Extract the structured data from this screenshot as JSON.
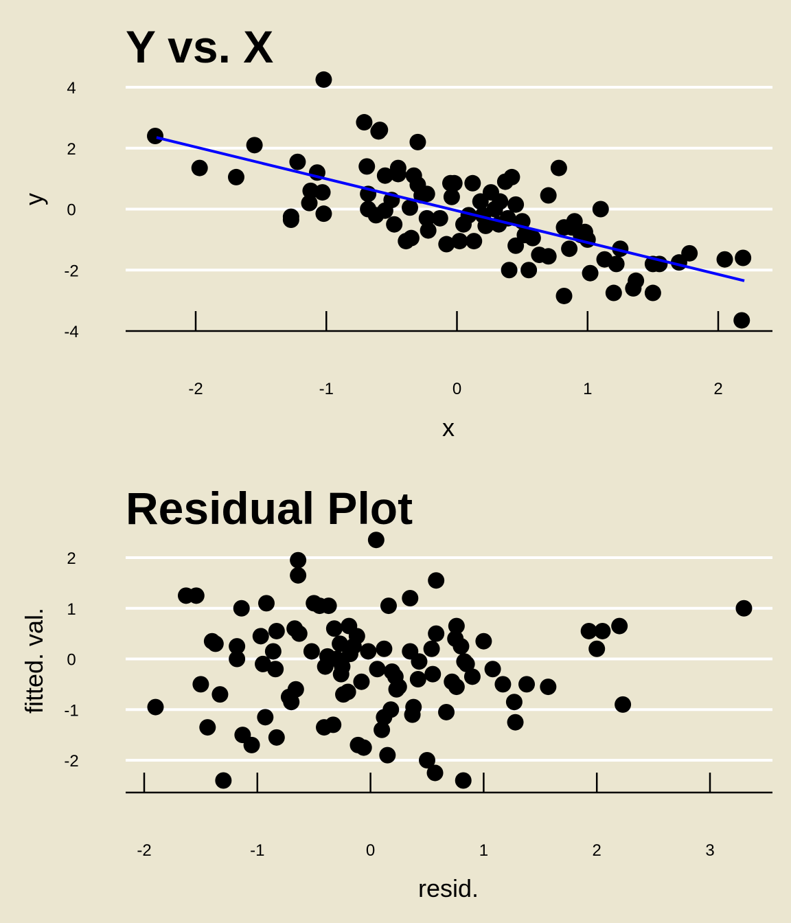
{
  "chart_data": [
    {
      "type": "scatter",
      "title": "Y vs. X",
      "xlabel": "x",
      "ylabel": "y",
      "xlim": [
        -2.6,
        2.35
      ],
      "ylim": [
        -4,
        4.3
      ],
      "xticks": [
        "-2",
        "-1",
        "0",
        "1",
        "2"
      ],
      "yticks": [
        "-4",
        "-2",
        "0",
        "2",
        "4"
      ],
      "grid": "horizontal",
      "line_color": "#0000ff",
      "fit_line": {
        "x": [
          -2.3,
          2.2
        ],
        "y": [
          2.35,
          -2.35
        ]
      },
      "points": [
        {
          "x": -2.31,
          "y": 2.4
        },
        {
          "x": -1.97,
          "y": 1.35
        },
        {
          "x": -1.69,
          "y": 1.05
        },
        {
          "x": -1.55,
          "y": 2.1
        },
        {
          "x": -1.27,
          "y": -0.25
        },
        {
          "x": -1.27,
          "y": -0.35
        },
        {
          "x": -1.22,
          "y": 1.55
        },
        {
          "x": -1.13,
          "y": 0.2
        },
        {
          "x": -1.12,
          "y": 0.6
        },
        {
          "x": -1.07,
          "y": 1.2
        },
        {
          "x": -1.03,
          "y": 0.55
        },
        {
          "x": -1.02,
          "y": -0.15
        },
        {
          "x": -1.02,
          "y": 4.25
        },
        {
          "x": -0.71,
          "y": 2.85
        },
        {
          "x": -0.69,
          "y": 1.4
        },
        {
          "x": -0.68,
          "y": 0.5
        },
        {
          "x": -0.68,
          "y": 0.0
        },
        {
          "x": -0.62,
          "y": -0.2
        },
        {
          "x": -0.6,
          "y": 2.55
        },
        {
          "x": -0.59,
          "y": 2.6
        },
        {
          "x": -0.55,
          "y": 1.1
        },
        {
          "x": -0.55,
          "y": -0.05
        },
        {
          "x": -0.5,
          "y": 0.3
        },
        {
          "x": -0.48,
          "y": -0.5
        },
        {
          "x": -0.45,
          "y": 1.15
        },
        {
          "x": -0.45,
          "y": 1.35
        },
        {
          "x": -0.39,
          "y": -1.05
        },
        {
          "x": -0.36,
          "y": 0.05
        },
        {
          "x": -0.35,
          "y": -0.95
        },
        {
          "x": -0.33,
          "y": 1.1
        },
        {
          "x": -0.3,
          "y": 2.2
        },
        {
          "x": -0.3,
          "y": 0.8
        },
        {
          "x": -0.27,
          "y": 0.45
        },
        {
          "x": -0.23,
          "y": 0.5
        },
        {
          "x": -0.23,
          "y": -0.3
        },
        {
          "x": -0.22,
          "y": -0.7
        },
        {
          "x": -0.13,
          "y": -0.3
        },
        {
          "x": -0.08,
          "y": -1.15
        },
        {
          "x": -0.05,
          "y": 0.85
        },
        {
          "x": -0.04,
          "y": 0.4
        },
        {
          "x": -0.02,
          "y": 0.85
        },
        {
          "x": 0.02,
          "y": -1.05
        },
        {
          "x": 0.05,
          "y": -0.5
        },
        {
          "x": 0.09,
          "y": -0.2
        },
        {
          "x": 0.12,
          "y": 0.85
        },
        {
          "x": 0.13,
          "y": -1.05
        },
        {
          "x": 0.18,
          "y": 0.25
        },
        {
          "x": 0.2,
          "y": -0.2
        },
        {
          "x": 0.22,
          "y": -0.55
        },
        {
          "x": 0.26,
          "y": 0.55
        },
        {
          "x": 0.29,
          "y": 0.0
        },
        {
          "x": 0.32,
          "y": -0.5
        },
        {
          "x": 0.33,
          "y": 0.25
        },
        {
          "x": 0.37,
          "y": 0.9
        },
        {
          "x": 0.39,
          "y": -0.3
        },
        {
          "x": 0.4,
          "y": -2.0
        },
        {
          "x": 0.42,
          "y": 1.05
        },
        {
          "x": 0.45,
          "y": -1.2
        },
        {
          "x": 0.45,
          "y": 0.15
        },
        {
          "x": 0.5,
          "y": -0.4
        },
        {
          "x": 0.52,
          "y": -0.85
        },
        {
          "x": 0.55,
          "y": -2.0
        },
        {
          "x": 0.58,
          "y": -0.95
        },
        {
          "x": 0.63,
          "y": -1.5
        },
        {
          "x": 0.7,
          "y": 0.45
        },
        {
          "x": 0.7,
          "y": -1.55
        },
        {
          "x": 0.78,
          "y": 1.35
        },
        {
          "x": 0.82,
          "y": -2.85
        },
        {
          "x": 0.82,
          "y": -0.6
        },
        {
          "x": 0.86,
          "y": -1.3
        },
        {
          "x": 0.88,
          "y": -0.6
        },
        {
          "x": 0.9,
          "y": -0.4
        },
        {
          "x": 0.95,
          "y": -0.85
        },
        {
          "x": 0.98,
          "y": -0.75
        },
        {
          "x": 1.0,
          "y": -1.0
        },
        {
          "x": 1.02,
          "y": -2.1
        },
        {
          "x": 1.1,
          "y": 0.0
        },
        {
          "x": 1.13,
          "y": -1.65
        },
        {
          "x": 1.2,
          "y": -2.75
        },
        {
          "x": 1.22,
          "y": -1.8
        },
        {
          "x": 1.25,
          "y": -1.3
        },
        {
          "x": 1.35,
          "y": -2.6
        },
        {
          "x": 1.37,
          "y": -2.35
        },
        {
          "x": 1.5,
          "y": -2.75
        },
        {
          "x": 1.5,
          "y": -1.8
        },
        {
          "x": 1.55,
          "y": -1.8
        },
        {
          "x": 1.7,
          "y": -1.75
        },
        {
          "x": 1.78,
          "y": -1.45
        },
        {
          "x": 2.05,
          "y": -1.65
        },
        {
          "x": 2.18,
          "y": -3.65
        },
        {
          "x": 2.19,
          "y": -1.6
        }
      ]
    },
    {
      "type": "scatter",
      "title": "Residual Plot",
      "xlabel": "resid.",
      "ylabel": "fitted. val.",
      "xlim": [
        -2.15,
        3.55
      ],
      "ylim": [
        -2.6,
        2.3
      ],
      "xticks": [
        "-2",
        "-1",
        "0",
        "1",
        "2",
        "3"
      ],
      "yticks": [
        "-2",
        "-1",
        "0",
        "1",
        "2"
      ],
      "grid": "horizontal",
      "points": [
        {
          "x": -1.9,
          "y": -0.95
        },
        {
          "x": -1.63,
          "y": 1.25
        },
        {
          "x": -1.54,
          "y": 1.25
        },
        {
          "x": -1.5,
          "y": -0.5
        },
        {
          "x": -1.44,
          "y": -1.35
        },
        {
          "x": -1.4,
          "y": 0.35
        },
        {
          "x": -1.37,
          "y": 0.3
        },
        {
          "x": -1.33,
          "y": -0.7
        },
        {
          "x": -1.3,
          "y": -2.4
        },
        {
          "x": -1.18,
          "y": 0.25
        },
        {
          "x": -1.18,
          "y": 0.0
        },
        {
          "x": -1.14,
          "y": 1.0
        },
        {
          "x": -1.13,
          "y": -1.5
        },
        {
          "x": -1.05,
          "y": -1.7
        },
        {
          "x": -0.97,
          "y": 0.45
        },
        {
          "x": -0.95,
          "y": -0.1
        },
        {
          "x": -0.93,
          "y": -1.15
        },
        {
          "x": -0.92,
          "y": 1.1
        },
        {
          "x": -0.86,
          "y": 0.15
        },
        {
          "x": -0.84,
          "y": -0.2
        },
        {
          "x": -0.83,
          "y": 0.55
        },
        {
          "x": -0.83,
          "y": -1.55
        },
        {
          "x": -0.72,
          "y": -0.75
        },
        {
          "x": -0.7,
          "y": -0.85
        },
        {
          "x": -0.67,
          "y": 0.6
        },
        {
          "x": -0.66,
          "y": -0.6
        },
        {
          "x": -0.64,
          "y": 1.95
        },
        {
          "x": -0.64,
          "y": 1.65
        },
        {
          "x": -0.63,
          "y": 0.5
        },
        {
          "x": -0.52,
          "y": 0.15
        },
        {
          "x": -0.5,
          "y": 1.1
        },
        {
          "x": -0.45,
          "y": 1.05
        },
        {
          "x": -0.41,
          "y": -1.35
        },
        {
          "x": -0.4,
          "y": -0.15
        },
        {
          "x": -0.38,
          "y": 0.05
        },
        {
          "x": -0.37,
          "y": 1.05
        },
        {
          "x": -0.33,
          "y": -1.3
        },
        {
          "x": -0.32,
          "y": 0.6
        },
        {
          "x": -0.3,
          "y": 0.0
        },
        {
          "x": -0.27,
          "y": 0.3
        },
        {
          "x": -0.26,
          "y": -0.3
        },
        {
          "x": -0.25,
          "y": -0.15
        },
        {
          "x": -0.24,
          "y": -0.7
        },
        {
          "x": -0.2,
          "y": -0.65
        },
        {
          "x": -0.19,
          "y": 0.65
        },
        {
          "x": -0.18,
          "y": 0.1
        },
        {
          "x": -0.15,
          "y": 0.25
        },
        {
          "x": -0.12,
          "y": 0.45
        },
        {
          "x": -0.11,
          "y": -1.7
        },
        {
          "x": -0.08,
          "y": -0.45
        },
        {
          "x": -0.06,
          "y": -1.75
        },
        {
          "x": -0.02,
          "y": 0.15
        },
        {
          "x": 0.05,
          "y": 2.35
        },
        {
          "x": 0.06,
          "y": -0.2
        },
        {
          "x": 0.1,
          "y": -1.4
        },
        {
          "x": 0.12,
          "y": 0.2
        },
        {
          "x": 0.12,
          "y": -1.15
        },
        {
          "x": 0.15,
          "y": -1.9
        },
        {
          "x": 0.16,
          "y": 1.05
        },
        {
          "x": 0.18,
          "y": -1.0
        },
        {
          "x": 0.19,
          "y": -0.25
        },
        {
          "x": 0.22,
          "y": -0.35
        },
        {
          "x": 0.23,
          "y": -0.6
        },
        {
          "x": 0.25,
          "y": -0.55
        },
        {
          "x": 0.35,
          "y": 0.15
        },
        {
          "x": 0.35,
          "y": 1.2
        },
        {
          "x": 0.37,
          "y": -1.1
        },
        {
          "x": 0.38,
          "y": -0.95
        },
        {
          "x": 0.42,
          "y": -0.4
        },
        {
          "x": 0.43,
          "y": -0.05
        },
        {
          "x": 0.5,
          "y": -2.0
        },
        {
          "x": 0.54,
          "y": 0.2
        },
        {
          "x": 0.55,
          "y": -0.3
        },
        {
          "x": 0.57,
          "y": -2.25
        },
        {
          "x": 0.58,
          "y": 0.5
        },
        {
          "x": 0.58,
          "y": 1.55
        },
        {
          "x": 0.67,
          "y": -1.05
        },
        {
          "x": 0.72,
          "y": -0.45
        },
        {
          "x": 0.75,
          "y": 0.4
        },
        {
          "x": 0.76,
          "y": 0.65
        },
        {
          "x": 0.76,
          "y": -0.55
        },
        {
          "x": 0.8,
          "y": 0.25
        },
        {
          "x": 0.82,
          "y": -2.4
        },
        {
          "x": 0.83,
          "y": -0.05
        },
        {
          "x": 0.85,
          "y": -0.1
        },
        {
          "x": 0.9,
          "y": -0.35
        },
        {
          "x": 1.0,
          "y": 0.35
        },
        {
          "x": 1.08,
          "y": -0.2
        },
        {
          "x": 1.17,
          "y": -0.5
        },
        {
          "x": 1.27,
          "y": -0.85
        },
        {
          "x": 1.28,
          "y": -1.25
        },
        {
          "x": 1.38,
          "y": -0.5
        },
        {
          "x": 1.57,
          "y": -0.55
        },
        {
          "x": 1.93,
          "y": 0.55
        },
        {
          "x": 2.0,
          "y": 0.2
        },
        {
          "x": 2.05,
          "y": 0.55
        },
        {
          "x": 2.2,
          "y": 0.65
        },
        {
          "x": 2.23,
          "y": -0.9
        },
        {
          "x": 3.3,
          "y": 1.0
        }
      ]
    }
  ]
}
